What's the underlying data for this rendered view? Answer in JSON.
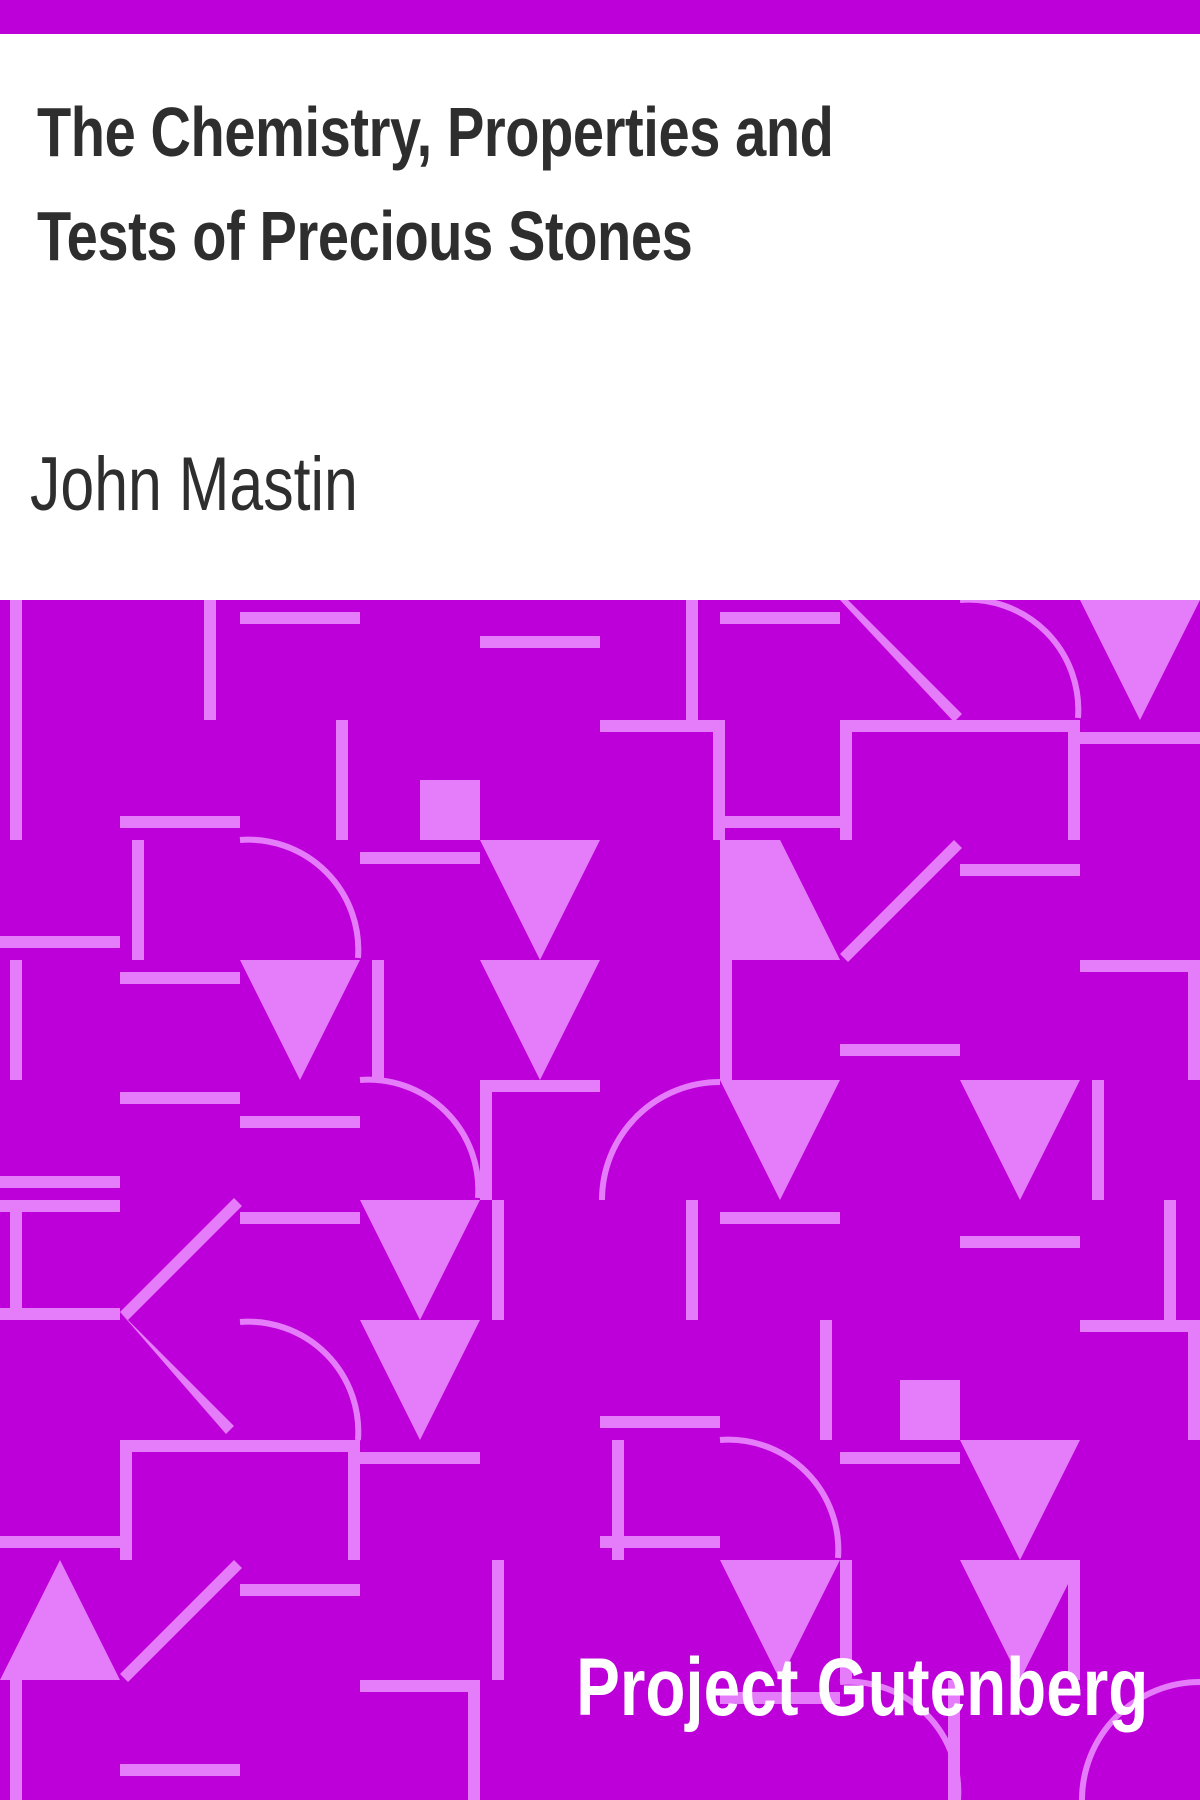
{
  "book": {
    "title": "The Chemistry, Properties and Tests of Precious Stones",
    "author": "John Mastin",
    "publisher": "Project Gutenberg"
  },
  "colors": {
    "background": "#ffffff",
    "accent": "#bd00d9",
    "pattern": "#e57cfa",
    "title_text": "#2e2e2e",
    "publisher_text": "#ffffff"
  }
}
